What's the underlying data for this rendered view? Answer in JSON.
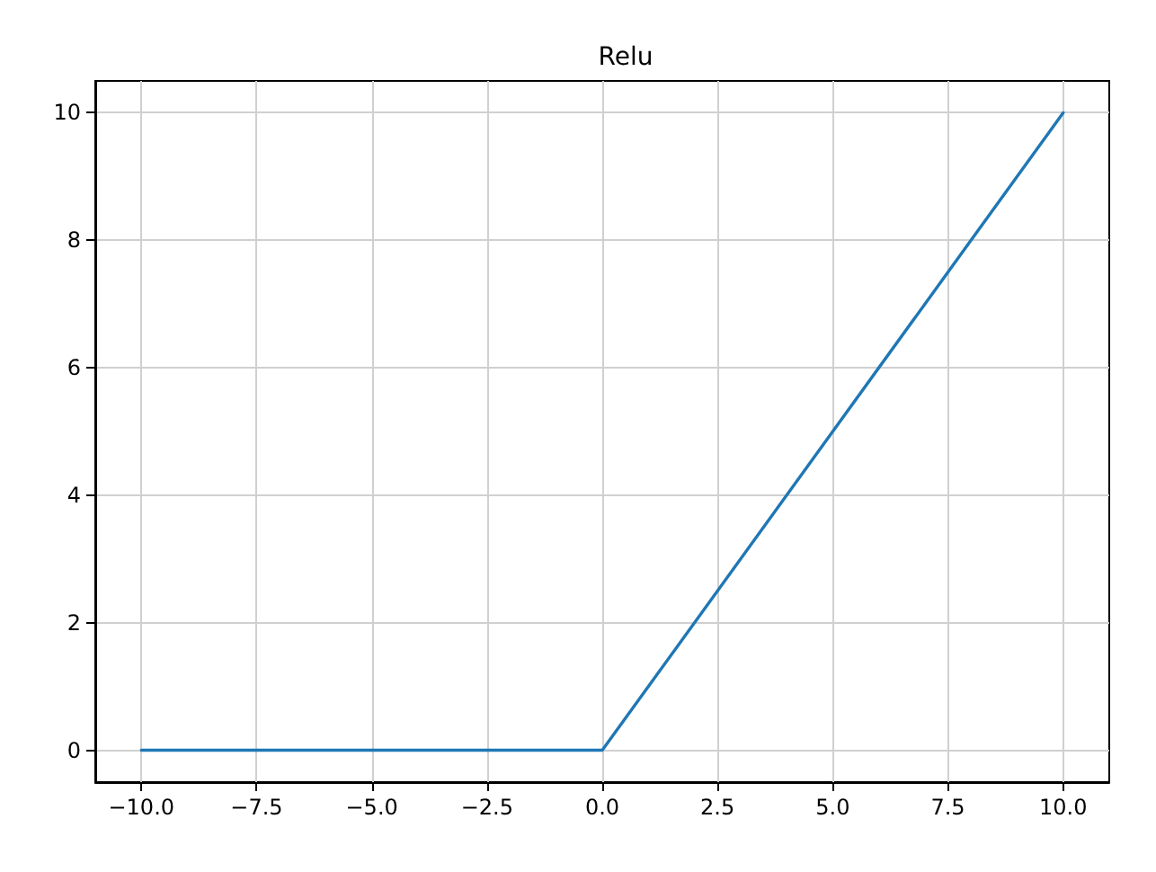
{
  "chart_data": {
    "type": "line",
    "title": "Relu",
    "x": [
      -10,
      0,
      10
    ],
    "series": [
      {
        "color": "#1f77b4",
        "values": [
          0,
          0,
          10
        ]
      }
    ],
    "xlim": [
      -11,
      11
    ],
    "ylim": [
      -0.5,
      10.5
    ],
    "xticks": [
      {
        "value": -10,
        "label": "−10.0"
      },
      {
        "value": -7.5,
        "label": "−7.5"
      },
      {
        "value": -5,
        "label": "−5.0"
      },
      {
        "value": -2.5,
        "label": "−2.5"
      },
      {
        "value": 0,
        "label": "0.0"
      },
      {
        "value": 2.5,
        "label": "2.5"
      },
      {
        "value": 5,
        "label": "5.0"
      },
      {
        "value": 7.5,
        "label": "7.5"
      },
      {
        "value": 10,
        "label": "10.0"
      }
    ],
    "yticks": [
      0,
      2,
      4,
      6,
      8,
      10
    ],
    "grid": true,
    "marker": "none",
    "line_style": "solid"
  }
}
